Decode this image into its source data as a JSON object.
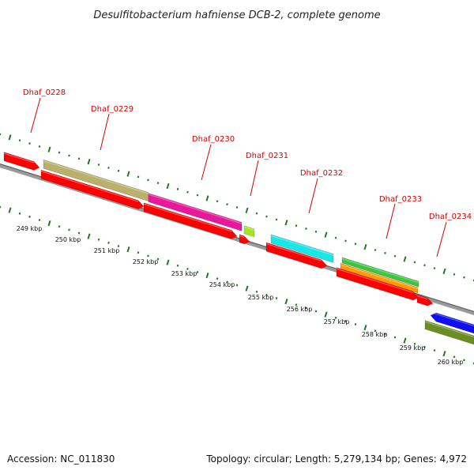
{
  "title": "Desulfitobacterium hafniense DCB-2, complete genome",
  "footer": {
    "accession": "Accession: NC_011830",
    "topology": "Topology: circular; Length: 5,279,134 bp; Genes: 4,972"
  },
  "colors": {
    "gene_label": "#d40000",
    "backbone": "#8c8c8c",
    "ticks": "#1f7a1f",
    "cds": "#ff0000",
    "khaki": "#b8b06b",
    "magenta": "#e8189a",
    "lime": "#a4e61a",
    "cyan": "#19e6e6",
    "green": "#3cc63c",
    "orange": "#ff9a00",
    "blue": "#1010ee",
    "olive": "#6b8e23"
  },
  "gene_labels": [
    "Dhaf_0228",
    "Dhaf_0229",
    "Dhaf_0230",
    "Dhaf_0231",
    "Dhaf_0232",
    "Dhaf_0233",
    "Dhaf_0234"
  ],
  "scale_labels": [
    "249 kbp",
    "250 kbp",
    "251 kbp",
    "252 kbp",
    "253 kbp",
    "254 kbp",
    "255 kbp",
    "256 kbp",
    "257 kbp",
    "258 kbp",
    "259 kbp",
    "260 kbp"
  ],
  "features": [
    {
      "name": "cds-a",
      "color": "cds"
    },
    {
      "name": "cds-b",
      "color": "cds"
    },
    {
      "name": "khaki-bar",
      "color": "khaki"
    },
    {
      "name": "magenta-bar",
      "color": "magenta"
    },
    {
      "name": "cds-c",
      "color": "cds"
    },
    {
      "name": "cds-d",
      "color": "cds"
    },
    {
      "name": "lime-box",
      "color": "lime"
    },
    {
      "name": "cyan-bar",
      "color": "cyan"
    },
    {
      "name": "cds-e",
      "color": "cds"
    },
    {
      "name": "green-bar",
      "color": "green"
    },
    {
      "name": "orange-bar",
      "color": "orange"
    },
    {
      "name": "cds-f",
      "color": "cds"
    },
    {
      "name": "cds-g",
      "color": "cds"
    },
    {
      "name": "blue-arrow",
      "color": "blue"
    },
    {
      "name": "olive-bar",
      "color": "olive"
    }
  ]
}
